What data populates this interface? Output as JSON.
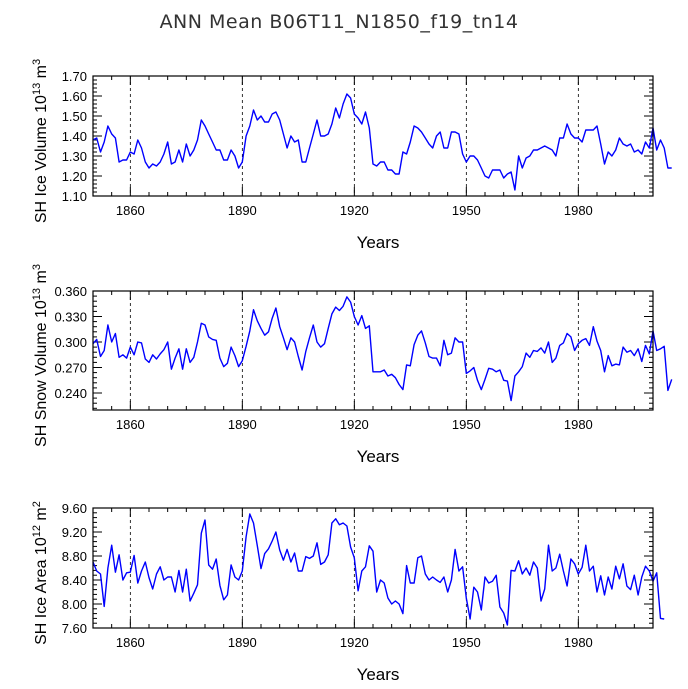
{
  "figure_title": "ANN Mean B06T11_N1850_f19_tn14",
  "line_color": "#0000ff",
  "chart_data": [
    {
      "type": "line",
      "name": "ice-volume",
      "ylabel": "SH Ice Volume 10",
      "ylabel_exp": "13",
      "ylabel_unit": " m",
      "ylabel_unit_exp": "3",
      "xlabel": "Years",
      "xlim": [
        1850,
        2000
      ],
      "ylim": [
        1.1,
        1.7
      ],
      "yticks": [
        1.1,
        1.2,
        1.3,
        1.4,
        1.5,
        1.6,
        1.7
      ],
      "ytick_labels": [
        "1.10",
        "1.20",
        "1.30",
        "1.40",
        "1.50",
        "1.60",
        "1.70"
      ],
      "xticks": [
        1860,
        1890,
        1920,
        1950,
        1980
      ],
      "xtick_labels": [
        "1860",
        "1890",
        "1920",
        "1950",
        "1980"
      ],
      "start_year": 1850,
      "values": [
        1.38,
        1.39,
        1.32,
        1.37,
        1.45,
        1.41,
        1.39,
        1.27,
        1.28,
        1.28,
        1.32,
        1.31,
        1.38,
        1.34,
        1.27,
        1.24,
        1.26,
        1.25,
        1.27,
        1.31,
        1.37,
        1.26,
        1.27,
        1.33,
        1.27,
        1.36,
        1.3,
        1.33,
        1.38,
        1.48,
        1.45,
        1.41,
        1.37,
        1.33,
        1.33,
        1.28,
        1.28,
        1.33,
        1.3,
        1.24,
        1.27,
        1.4,
        1.45,
        1.53,
        1.48,
        1.5,
        1.47,
        1.47,
        1.51,
        1.52,
        1.48,
        1.41,
        1.34,
        1.4,
        1.37,
        1.38,
        1.27,
        1.27,
        1.34,
        1.41,
        1.48,
        1.4,
        1.4,
        1.41,
        1.46,
        1.54,
        1.49,
        1.56,
        1.61,
        1.59,
        1.51,
        1.49,
        1.46,
        1.52,
        1.44,
        1.26,
        1.25,
        1.27,
        1.27,
        1.23,
        1.23,
        1.21,
        1.21,
        1.32,
        1.31,
        1.37,
        1.45,
        1.44,
        1.42,
        1.39,
        1.36,
        1.34,
        1.4,
        1.42,
        1.34,
        1.34,
        1.42,
        1.42,
        1.41,
        1.31,
        1.27,
        1.3,
        1.3,
        1.28,
        1.24,
        1.2,
        1.19,
        1.23,
        1.23,
        1.23,
        1.19,
        1.21,
        1.22,
        1.13,
        1.3,
        1.24,
        1.29,
        1.3,
        1.33,
        1.33,
        1.34,
        1.35,
        1.34,
        1.33,
        1.3,
        1.39,
        1.39,
        1.46,
        1.41,
        1.39,
        1.39,
        1.37,
        1.43,
        1.43,
        1.43,
        1.45,
        1.36,
        1.26,
        1.32,
        1.3,
        1.33,
        1.39,
        1.36,
        1.35,
        1.36,
        1.32,
        1.33,
        1.31,
        1.37,
        1.34,
        1.44,
        1.33,
        1.38,
        1.34,
        1.24,
        1.24
      ]
    },
    {
      "type": "line",
      "name": "snow-volume",
      "ylabel": "SH Snow Volume 10",
      "ylabel_exp": "13",
      "ylabel_unit": " m",
      "ylabel_unit_exp": "3",
      "xlabel": "Years",
      "xlim": [
        1850,
        2000
      ],
      "ylim": [
        0.22,
        0.36
      ],
      "yticks": [
        0.24,
        0.27,
        0.3,
        0.33,
        0.36
      ],
      "ytick_labels": [
        "0.240",
        "0.270",
        "0.300",
        "0.330",
        "0.360"
      ],
      "xticks": [
        1860,
        1890,
        1920,
        1950,
        1980
      ],
      "xtick_labels": [
        "1860",
        "1890",
        "1920",
        "1950",
        "1980"
      ],
      "start_year": 1850,
      "values": [
        0.298,
        0.303,
        0.283,
        0.29,
        0.32,
        0.3,
        0.31,
        0.282,
        0.285,
        0.281,
        0.294,
        0.285,
        0.3,
        0.299,
        0.28,
        0.276,
        0.285,
        0.28,
        0.286,
        0.291,
        0.3,
        0.268,
        0.281,
        0.292,
        0.268,
        0.292,
        0.276,
        0.282,
        0.3,
        0.322,
        0.32,
        0.306,
        0.303,
        0.302,
        0.281,
        0.271,
        0.275,
        0.294,
        0.284,
        0.271,
        0.278,
        0.295,
        0.313,
        0.338,
        0.325,
        0.316,
        0.308,
        0.312,
        0.328,
        0.34,
        0.318,
        0.305,
        0.291,
        0.305,
        0.3,
        0.283,
        0.267,
        0.289,
        0.305,
        0.32,
        0.3,
        0.294,
        0.298,
        0.316,
        0.333,
        0.341,
        0.337,
        0.342,
        0.353,
        0.347,
        0.33,
        0.32,
        0.331,
        0.316,
        0.319,
        0.265,
        0.265,
        0.265,
        0.267,
        0.26,
        0.262,
        0.258,
        0.25,
        0.244,
        0.273,
        0.272,
        0.297,
        0.308,
        0.313,
        0.299,
        0.283,
        0.281,
        0.281,
        0.272,
        0.302,
        0.285,
        0.287,
        0.305,
        0.3,
        0.3,
        0.263,
        0.266,
        0.27,
        0.255,
        0.244,
        0.256,
        0.269,
        0.268,
        0.265,
        0.267,
        0.255,
        0.254,
        0.231,
        0.26,
        0.265,
        0.271,
        0.287,
        0.282,
        0.29,
        0.289,
        0.293,
        0.287,
        0.3,
        0.276,
        0.281,
        0.296,
        0.299,
        0.31,
        0.306,
        0.29,
        0.298,
        0.302,
        0.304,
        0.296,
        0.318,
        0.301,
        0.29,
        0.265,
        0.284,
        0.272,
        0.274,
        0.273,
        0.294,
        0.288,
        0.29,
        0.284,
        0.292,
        0.277,
        0.296,
        0.286,
        0.313,
        0.29,
        0.292,
        0.295,
        0.243,
        0.256
      ]
    },
    {
      "type": "line",
      "name": "ice-area",
      "ylabel": "SH Ice Area 10",
      "ylabel_exp": "12",
      "ylabel_unit": " m",
      "ylabel_unit_exp": "2",
      "xlabel": "Years",
      "xlim": [
        1850,
        2000
      ],
      "ylim": [
        7.6,
        9.6
      ],
      "yticks": [
        7.6,
        8.0,
        8.4,
        8.8,
        9.2,
        9.6
      ],
      "ytick_labels": [
        "7.60",
        "8.00",
        "8.40",
        "8.80",
        "9.20",
        "9.60"
      ],
      "xticks": [
        1860,
        1890,
        1920,
        1950,
        1980
      ],
      "xtick_labels": [
        "1860",
        "1890",
        "1920",
        "1950",
        "1980"
      ],
      "start_year": 1850,
      "values": [
        8.7,
        8.55,
        8.5,
        7.96,
        8.6,
        8.98,
        8.53,
        8.82,
        8.4,
        8.52,
        8.53,
        8.81,
        8.35,
        8.55,
        8.7,
        8.44,
        8.25,
        8.5,
        8.62,
        8.4,
        8.45,
        8.45,
        8.2,
        8.56,
        8.2,
        8.58,
        8.05,
        8.18,
        8.32,
        9.18,
        9.4,
        8.65,
        8.58,
        8.75,
        8.31,
        8.07,
        8.15,
        8.65,
        8.45,
        8.4,
        8.55,
        9.12,
        9.5,
        9.35,
        8.97,
        8.59,
        8.84,
        8.92,
        9.05,
        9.2,
        8.9,
        8.73,
        8.91,
        8.7,
        8.85,
        8.55,
        8.55,
        8.79,
        8.76,
        8.8,
        9.02,
        8.66,
        8.7,
        8.82,
        9.35,
        9.42,
        9.32,
        9.35,
        9.3,
        8.95,
        8.77,
        8.22,
        8.55,
        8.62,
        8.97,
        8.88,
        8.2,
        8.4,
        8.35,
        8.1,
        8.0,
        8.05,
        8.0,
        7.84,
        8.64,
        8.35,
        8.35,
        8.77,
        8.8,
        8.5,
        8.4,
        8.45,
        8.4,
        8.36,
        8.45,
        8.2,
        8.4,
        8.91,
        8.55,
        8.62,
        8.1,
        7.75,
        8.28,
        8.2,
        7.9,
        8.45,
        8.35,
        8.38,
        8.48,
        7.95,
        7.85,
        7.65,
        8.56,
        8.55,
        8.72,
        8.5,
        8.6,
        8.48,
        8.7,
        8.6,
        8.05,
        8.25,
        8.98,
        8.55,
        8.6,
        8.83,
        8.55,
        8.3,
        8.75,
        8.67,
        8.5,
        8.61,
        8.98,
        8.55,
        8.63,
        8.2,
        8.47,
        8.15,
        8.45,
        8.25,
        8.63,
        8.42,
        8.67,
        8.3,
        8.24,
        8.48,
        8.15,
        8.45,
        8.63,
        8.55,
        8.38,
        8.52,
        7.76,
        7.75
      ]
    }
  ]
}
